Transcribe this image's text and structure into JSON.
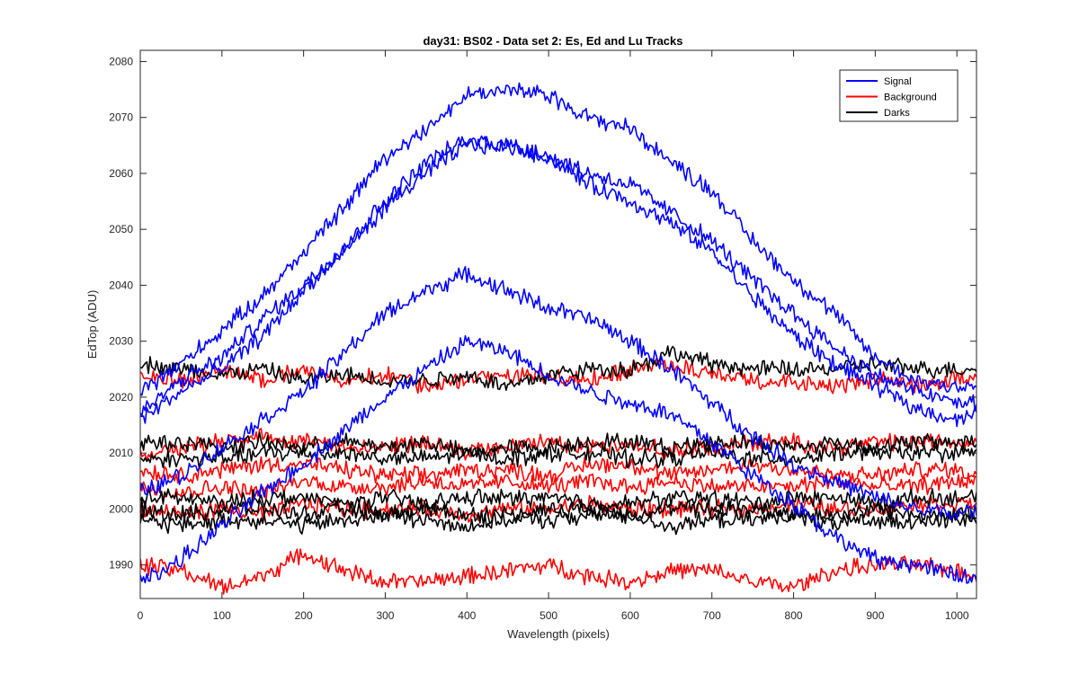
{
  "chart_data": {
    "type": "line",
    "title": "day31: BS02 - Data set 2: Es, Ed and Lu Tracks",
    "xlabel": "Wavelength (pixels)",
    "ylabel": "EdTop (ADU)",
    "xlim": [
      0,
      1024
    ],
    "ylim": [
      1984,
      2082
    ],
    "xticks": [
      0,
      100,
      200,
      300,
      400,
      500,
      600,
      700,
      800,
      900,
      1000
    ],
    "yticks": [
      1990,
      2000,
      2010,
      2020,
      2030,
      2040,
      2050,
      2060,
      2070,
      2080
    ],
    "grid": false,
    "legend_position": "top-right",
    "legend": [
      {
        "label": "Signal",
        "color": "#0000ff"
      },
      {
        "label": "Background",
        "color": "#ff0000"
      },
      {
        "label": "Darks",
        "color": "#000000"
      }
    ],
    "x": [
      0,
      50,
      100,
      150,
      200,
      250,
      300,
      350,
      400,
      450,
      500,
      550,
      600,
      650,
      700,
      750,
      800,
      850,
      900,
      950,
      1000,
      1024
    ],
    "series": [
      {
        "group": "Signal",
        "color": "#0000ff",
        "values": [
          2021,
          2026,
          2032,
          2038,
          2046,
          2054,
          2063,
          2068,
          2074,
          2075,
          2074,
          2070,
          2068,
          2062,
          2057,
          2048,
          2041,
          2035,
          2027,
          2023,
          2022,
          2022
        ]
      },
      {
        "group": "Signal",
        "color": "#0000ff",
        "values": [
          2017,
          2023,
          2027,
          2034,
          2040,
          2047,
          2055,
          2062,
          2066,
          2065,
          2063,
          2060,
          2058,
          2053,
          2048,
          2041,
          2035,
          2029,
          2024,
          2021,
          2019,
          2019
        ]
      },
      {
        "group": "Signal",
        "color": "#0000ff",
        "values": [
          2016,
          2021,
          2025,
          2031,
          2039,
          2046,
          2054,
          2060,
          2065,
          2065,
          2063,
          2058,
          2055,
          2051,
          2046,
          2038,
          2031,
          2026,
          2022,
          2018,
          2016,
          2017
        ]
      },
      {
        "group": "Signal",
        "color": "#0000ff",
        "values": [
          2003,
          2006,
          2011,
          2016,
          2021,
          2028,
          2035,
          2039,
          2042,
          2039,
          2036,
          2034,
          2030,
          2025,
          2019,
          2013,
          2008,
          2005,
          2002,
          2000,
          1999,
          2000
        ]
      },
      {
        "group": "Signal",
        "color": "#0000ff",
        "values": [
          1987,
          1991,
          1997,
          2003,
          2008,
          2014,
          2020,
          2025,
          2030,
          2028,
          2024,
          2021,
          2019,
          2017,
          2012,
          2006,
          2001,
          1995,
          1991,
          1990,
          1988,
          1988
        ]
      },
      {
        "group": "Background",
        "color": "#ff0000",
        "values": [
          2024,
          2023,
          2025,
          2023,
          2025,
          2023,
          2024,
          2022,
          2023,
          2024,
          2024,
          2023,
          2025,
          2026,
          2024,
          2023,
          2023,
          2022,
          2023,
          2022,
          2023,
          2023
        ]
      },
      {
        "group": "Background",
        "color": "#ff0000",
        "values": [
          2010,
          2011,
          2012,
          2013,
          2012,
          2011,
          2011,
          2012,
          2010,
          2011,
          2012,
          2011,
          2012,
          2010,
          2011,
          2012,
          2012,
          2011,
          2012,
          2012,
          2012,
          2012
        ]
      },
      {
        "group": "Background",
        "color": "#ff0000",
        "values": [
          2007,
          2006,
          2007,
          2008,
          2008,
          2007,
          2006,
          2006,
          2007,
          2007,
          2006,
          2008,
          2008,
          2006,
          2007,
          2008,
          2007,
          2006,
          2006,
          2007,
          2007,
          2006
        ]
      },
      {
        "group": "Background",
        "color": "#ff0000",
        "values": [
          2004,
          2003,
          2004,
          2003,
          2005,
          2004,
          2004,
          2005,
          2004,
          2005,
          2004,
          2005,
          2004,
          2005,
          2004,
          2004,
          2004,
          2005,
          2004,
          2004,
          2005,
          2005
        ]
      },
      {
        "group": "Background",
        "color": "#ff0000",
        "values": [
          2000,
          1999,
          2000,
          1999,
          2001,
          2000,
          2000,
          2000,
          1999,
          2000,
          2000,
          2001,
          2000,
          2000,
          2000,
          2000,
          2001,
          2000,
          2000,
          2001,
          2001,
          2001
        ]
      },
      {
        "group": "Background",
        "color": "#ff0000",
        "values": [
          1990,
          1989,
          1986,
          1988,
          1992,
          1989,
          1987,
          1987,
          1988,
          1989,
          1990,
          1988,
          1987,
          1989,
          1989,
          1987,
          1986,
          1989,
          1990,
          1990,
          1989,
          1988
        ]
      },
      {
        "group": "Darks",
        "color": "#000000",
        "values": [
          2026,
          2025,
          2024,
          2025,
          2023,
          2024,
          2023,
          2023,
          2024,
          2022,
          2024,
          2025,
          2025,
          2028,
          2026,
          2025,
          2025,
          2025,
          2026,
          2025,
          2025,
          2025
        ]
      },
      {
        "group": "Darks",
        "color": "#000000",
        "values": [
          2012,
          2012,
          2011,
          2012,
          2011,
          2012,
          2011,
          2012,
          2010,
          2011,
          2011,
          2012,
          2012,
          2011,
          2012,
          2012,
          2011,
          2012,
          2011,
          2012,
          2012,
          2012
        ]
      },
      {
        "group": "Darks",
        "color": "#000000",
        "values": [
          2009,
          2009,
          2009,
          2010,
          2010,
          2010,
          2009,
          2009,
          2010,
          2009,
          2010,
          2010,
          2009,
          2009,
          2010,
          2009,
          2009,
          2010,
          2010,
          2010,
          2010,
          2010
        ]
      },
      {
        "group": "Darks",
        "color": "#000000",
        "values": [
          2002,
          2002,
          2001,
          2002,
          2002,
          2001,
          2002,
          2001,
          2002,
          2002,
          2002,
          2001,
          2001,
          2002,
          2002,
          2001,
          2002,
          2002,
          2001,
          2002,
          2002,
          2002
        ]
      },
      {
        "group": "Darks",
        "color": "#000000",
        "values": [
          2000,
          1999,
          2000,
          2000,
          1999,
          2000,
          1999,
          2000,
          1999,
          1999,
          2000,
          2000,
          1999,
          2000,
          2000,
          2000,
          1999,
          1999,
          2000,
          1999,
          1999,
          1999
        ]
      },
      {
        "group": "Darks",
        "color": "#000000",
        "values": [
          1998,
          1997,
          1998,
          1998,
          1997,
          1998,
          1999,
          1998,
          1997,
          1998,
          1998,
          1999,
          1999,
          1997,
          1998,
          1998,
          1999,
          1997,
          1998,
          1998,
          1998,
          1998
        ]
      }
    ]
  }
}
